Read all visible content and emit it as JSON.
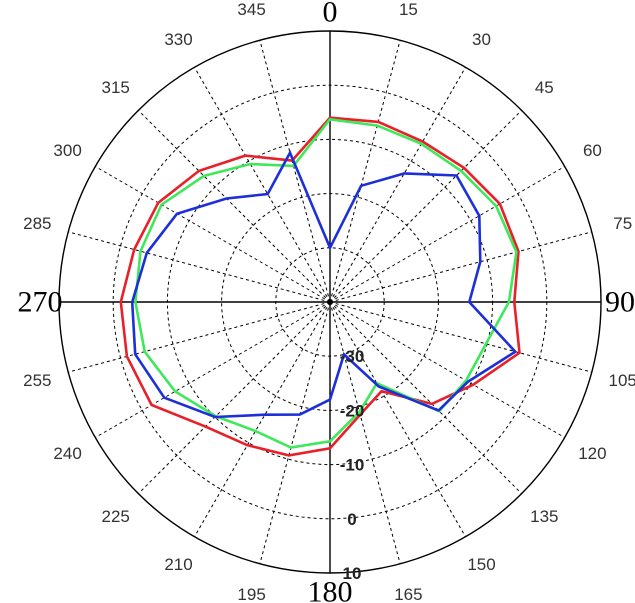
{
  "colors": {
    "background": "#ffffff",
    "grid": "#000000",
    "axis": "#000000",
    "series": [
      "#e8202a",
      "#3ee85a",
      "#1c2fd8"
    ]
  },
  "chart_data": {
    "type": "polar-line",
    "title": "",
    "angle_unit": "degrees",
    "angle_zero": "top",
    "angle_direction": "clockwise",
    "angle_ticks": [
      0,
      15,
      30,
      45,
      60,
      75,
      90,
      105,
      120,
      135,
      150,
      165,
      180,
      195,
      210,
      225,
      240,
      255,
      270,
      285,
      300,
      315,
      330,
      345
    ],
    "major_angle_ticks": [
      0,
      90,
      180,
      270
    ],
    "radial_range": [
      -40,
      10
    ],
    "radial_ticks": [
      -30,
      -20,
      -10,
      0,
      10
    ],
    "radial_tick_labels": [
      "-30",
      "-20",
      "-10",
      "0",
      "10"
    ],
    "grid": true,
    "legend": "none",
    "angles": [
      0,
      15,
      30,
      45,
      60,
      75,
      90,
      105,
      120,
      135,
      150,
      165,
      180,
      195,
      210,
      225,
      240,
      255,
      270,
      285,
      300,
      315,
      330,
      345
    ],
    "series": [
      {
        "color": "#e8202a",
        "values": [
          -6.0,
          -5.6,
          -5.8,
          -5.0,
          -3.8,
          -4.0,
          -6.0,
          -3.8,
          -9.5,
          -13.4,
          -21.0,
          -18.5,
          -13.0,
          -10.7,
          -9.5,
          -7.5,
          -2.0,
          -1.2,
          -1.4,
          -2.6,
          -3.4,
          -5.8,
          -8.8,
          -13.0
        ]
      },
      {
        "color": "#3ee85a",
        "values": [
          -6.3,
          -6.3,
          -6.3,
          -5.8,
          -4.6,
          -4.4,
          -7.0,
          -10.2,
          -11.0,
          -11.5,
          -22.7,
          -19.0,
          -14.3,
          -12.2,
          -12.5,
          -10.2,
          -7.0,
          -4.6,
          -4.1,
          -3.8,
          -4.1,
          -7.1,
          -10.6,
          -14.0
        ]
      },
      {
        "color": "#1c2fd8",
        "values": [
          -30.0,
          -17.8,
          -12.6,
          -7.0,
          -8.2,
          -11.3,
          -14.3,
          -4.6,
          -10.6,
          -11.7,
          -22.0,
          -30.0,
          -22.0,
          -18.5,
          -16.0,
          -10.0,
          -4.7,
          -2.8,
          -3.5,
          -5.0,
          -7.4,
          -13.0,
          -17.0,
          -11.5
        ]
      }
    ]
  }
}
